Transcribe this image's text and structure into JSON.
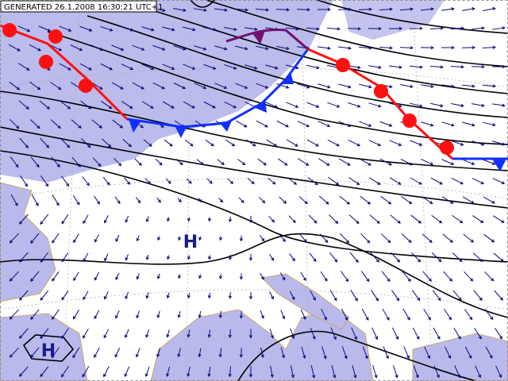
{
  "header": {
    "timestamp": "GENERATED 26.1.2008 16:30:21 UTC+1"
  },
  "pressure_centers": [
    {
      "label": "H"
    },
    {
      "label": "H"
    }
  ]
}
